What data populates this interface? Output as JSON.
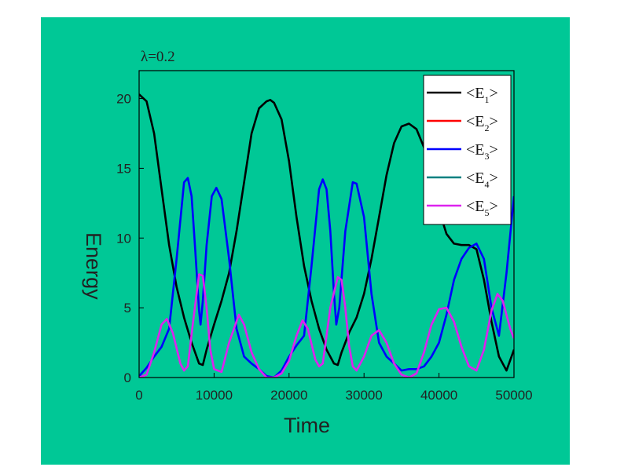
{
  "colors": {
    "background": "#00c896",
    "plot_bg": "#00c896",
    "legend_bg": "#ffffff",
    "axis": "#000000"
  },
  "chart_data": {
    "type": "line",
    "annotation": "λ=0.2",
    "xlabel": "Time",
    "ylabel": "Energy",
    "xlim": [
      0,
      50000
    ],
    "ylim": [
      0,
      22
    ],
    "xticks": [
      0,
      10000,
      20000,
      30000,
      40000,
      50000
    ],
    "yticks": [
      0,
      5,
      10,
      15,
      20
    ],
    "legend_position": "top-right",
    "series": [
      {
        "name": "<E1>",
        "label_main": "<E",
        "label_sub": "1",
        "label_end": ">",
        "color": "#000000",
        "points": [
          [
            0,
            20.3
          ],
          [
            1000,
            19.8
          ],
          [
            2000,
            17.5
          ],
          [
            3000,
            13.5
          ],
          [
            4000,
            9.5
          ],
          [
            5000,
            6.5
          ],
          [
            6000,
            4.3
          ],
          [
            7000,
            2.5
          ],
          [
            8000,
            1.0
          ],
          [
            8500,
            0.9
          ],
          [
            9000,
            2.0
          ],
          [
            10000,
            3.8
          ],
          [
            11000,
            5.5
          ],
          [
            12000,
            7.5
          ],
          [
            13000,
            10.5
          ],
          [
            14000,
            14.0
          ],
          [
            15000,
            17.5
          ],
          [
            16000,
            19.3
          ],
          [
            17000,
            19.8
          ],
          [
            17500,
            19.9
          ],
          [
            18000,
            19.7
          ],
          [
            19000,
            18.5
          ],
          [
            20000,
            15.5
          ],
          [
            21000,
            11.5
          ],
          [
            22000,
            8.0
          ],
          [
            23000,
            5.5
          ],
          [
            24000,
            3.5
          ],
          [
            25000,
            2.0
          ],
          [
            26000,
            1.0
          ],
          [
            26500,
            0.9
          ],
          [
            27000,
            1.8
          ],
          [
            28000,
            3.2
          ],
          [
            29000,
            4.3
          ],
          [
            30000,
            6.0
          ],
          [
            31000,
            8.5
          ],
          [
            32000,
            11.5
          ],
          [
            33000,
            14.5
          ],
          [
            34000,
            16.8
          ],
          [
            35000,
            18.0
          ],
          [
            36000,
            18.2
          ],
          [
            37000,
            17.8
          ],
          [
            38000,
            16.5
          ],
          [
            39000,
            14.5
          ],
          [
            40000,
            12.0
          ],
          [
            41000,
            10.3
          ],
          [
            42000,
            9.6
          ],
          [
            43000,
            9.5
          ],
          [
            44000,
            9.5
          ],
          [
            45000,
            9.2
          ],
          [
            46000,
            7.0
          ],
          [
            47000,
            4.0
          ],
          [
            48000,
            1.5
          ],
          [
            49000,
            0.5
          ],
          [
            50000,
            2.0
          ]
        ]
      },
      {
        "name": "<E2>",
        "label_main": "<E",
        "label_sub": "2",
        "label_end": ">",
        "color": "#ff0000",
        "points": []
      },
      {
        "name": "<E3>",
        "label_main": "<E",
        "label_sub": "3",
        "label_end": ">",
        "color": "#0000ff",
        "points": [
          [
            0,
            0.1
          ],
          [
            1000,
            0.7
          ],
          [
            2000,
            1.5
          ],
          [
            3000,
            2.2
          ],
          [
            4000,
            3.5
          ],
          [
            5000,
            8.5
          ],
          [
            6000,
            14.0
          ],
          [
            6500,
            14.3
          ],
          [
            7000,
            13.0
          ],
          [
            7500,
            9.0
          ],
          [
            8000,
            4.8
          ],
          [
            8200,
            3.8
          ],
          [
            8500,
            5.5
          ],
          [
            9000,
            9.5
          ],
          [
            9700,
            13.0
          ],
          [
            10300,
            13.6
          ],
          [
            11000,
            12.8
          ],
          [
            12000,
            8.5
          ],
          [
            13000,
            3.5
          ],
          [
            14000,
            1.5
          ],
          [
            15000,
            1.0
          ],
          [
            16000,
            0.6
          ],
          [
            17000,
            0.1
          ],
          [
            18000,
            0.0
          ],
          [
            19000,
            0.5
          ],
          [
            20000,
            1.5
          ],
          [
            21000,
            2.3
          ],
          [
            22000,
            3.0
          ],
          [
            23000,
            8.0
          ],
          [
            24000,
            13.5
          ],
          [
            24500,
            14.2
          ],
          [
            25000,
            13.5
          ],
          [
            25500,
            10.5
          ],
          [
            26000,
            6.0
          ],
          [
            26300,
            3.8
          ],
          [
            26700,
            5.0
          ],
          [
            27500,
            10.5
          ],
          [
            28500,
            14.0
          ],
          [
            29000,
            13.9
          ],
          [
            30000,
            11.5
          ],
          [
            31000,
            6.0
          ],
          [
            32000,
            2.5
          ],
          [
            33000,
            1.5
          ],
          [
            34000,
            1.0
          ],
          [
            35000,
            0.5
          ],
          [
            36000,
            0.6
          ],
          [
            37000,
            0.6
          ],
          [
            38000,
            0.8
          ],
          [
            39000,
            1.5
          ],
          [
            40000,
            2.5
          ],
          [
            41000,
            4.5
          ],
          [
            42000,
            7.0
          ],
          [
            43000,
            8.5
          ],
          [
            44000,
            9.3
          ],
          [
            45000,
            9.6
          ],
          [
            46000,
            8.5
          ],
          [
            47000,
            5.0
          ],
          [
            48000,
            3.0
          ],
          [
            49000,
            7.5
          ],
          [
            50000,
            13.0
          ]
        ]
      },
      {
        "name": "<E4>",
        "label_main": "<E",
        "label_sub": "4",
        "label_end": ">",
        "color": "#008080",
        "points": []
      },
      {
        "name": "<E5>",
        "label_main": "<E",
        "label_sub": "5",
        "label_end": ">",
        "color": "#dd22ee",
        "points": [
          [
            0,
            0.0
          ],
          [
            1000,
            0.2
          ],
          [
            2000,
            1.8
          ],
          [
            3000,
            3.8
          ],
          [
            3700,
            4.2
          ],
          [
            4500,
            3.2
          ],
          [
            5500,
            1.0
          ],
          [
            6000,
            0.5
          ],
          [
            6500,
            0.8
          ],
          [
            7200,
            4.0
          ],
          [
            8000,
            7.4
          ],
          [
            8500,
            7.3
          ],
          [
            9000,
            5.0
          ],
          [
            9500,
            2.0
          ],
          [
            10000,
            0.6
          ],
          [
            11000,
            0.4
          ],
          [
            12000,
            2.5
          ],
          [
            13300,
            4.5
          ],
          [
            14000,
            3.8
          ],
          [
            15000,
            1.8
          ],
          [
            16000,
            0.6
          ],
          [
            17000,
            0.0
          ],
          [
            18000,
            0.0
          ],
          [
            19000,
            0.3
          ],
          [
            20000,
            1.2
          ],
          [
            21000,
            3.0
          ],
          [
            21800,
            4.1
          ],
          [
            22500,
            3.5
          ],
          [
            23500,
            1.3
          ],
          [
            24000,
            0.8
          ],
          [
            24500,
            1.0
          ],
          [
            25500,
            5.0
          ],
          [
            26500,
            7.2
          ],
          [
            27000,
            7.0
          ],
          [
            27500,
            5.0
          ],
          [
            28000,
            2.3
          ],
          [
            28500,
            0.8
          ],
          [
            29000,
            0.5
          ],
          [
            30000,
            1.5
          ],
          [
            31000,
            3.0
          ],
          [
            32000,
            3.4
          ],
          [
            33000,
            2.5
          ],
          [
            34000,
            1.0
          ],
          [
            35000,
            0.2
          ],
          [
            36000,
            0.0
          ],
          [
            37000,
            0.3
          ],
          [
            38000,
            1.8
          ],
          [
            39000,
            3.8
          ],
          [
            40000,
            4.9
          ],
          [
            41000,
            5.0
          ],
          [
            42000,
            4.0
          ],
          [
            43000,
            2.2
          ],
          [
            44000,
            0.8
          ],
          [
            45000,
            0.5
          ],
          [
            46000,
            2.0
          ],
          [
            47000,
            4.8
          ],
          [
            47800,
            6.0
          ],
          [
            48500,
            5.5
          ],
          [
            49500,
            3.5
          ],
          [
            50000,
            2.8
          ]
        ]
      }
    ]
  }
}
